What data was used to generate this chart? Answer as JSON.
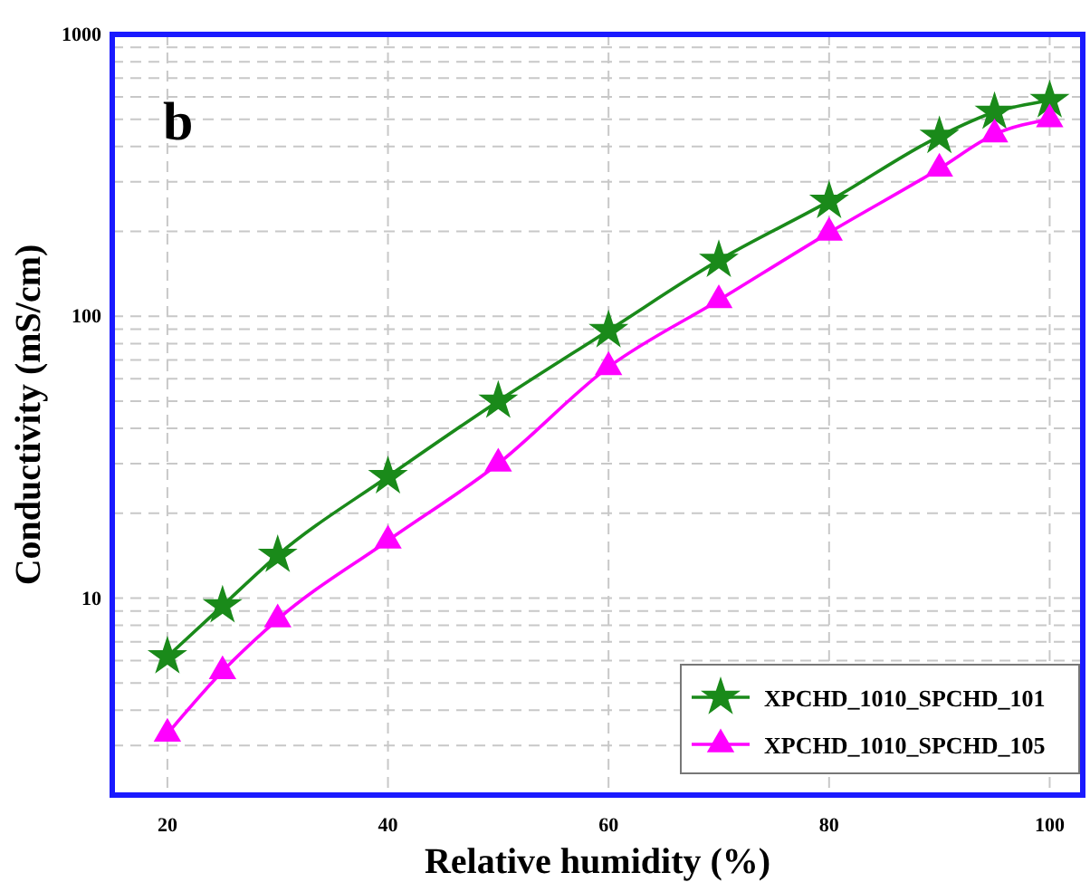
{
  "chart_data": {
    "type": "line",
    "xlabel": "Relative humidity (%)",
    "ylabel": "Conductivity (mS/cm)",
    "annotations": [
      "b"
    ],
    "x": [
      20,
      25,
      30,
      40,
      50,
      60,
      70,
      80,
      90,
      95,
      100
    ],
    "series": [
      {
        "name": "XPCHD_1010_SPCHD_101",
        "color": "#1a8a1a",
        "marker": "star",
        "values": [
          6.2,
          9.4,
          14.2,
          27,
          50,
          89,
          158,
          256,
          435,
          530,
          583
        ]
      },
      {
        "name": "XPCHD_1010_SPCHD_105",
        "color": "#ff00ff",
        "marker": "triangle",
        "values": [
          3.3,
          5.5,
          8.4,
          16,
          30,
          66,
          114,
          198,
          334,
          442,
          500
        ]
      }
    ],
    "log": true,
    "xlim": [
      15,
      103
    ],
    "xticks": [
      20,
      40,
      60,
      80,
      100
    ],
    "ylim": [
      2,
      1000
    ],
    "yticks": [
      {
        "value": 2,
        "label": null
      },
      {
        "value": 3,
        "label": null
      },
      {
        "value": 4,
        "label": null
      },
      {
        "value": 5,
        "label": null
      },
      {
        "value": 6,
        "label": null
      },
      {
        "value": 7,
        "label": null
      },
      {
        "value": 8,
        "label": null
      },
      {
        "value": 9,
        "label": null
      },
      10,
      {
        "value": 20,
        "label": null
      },
      {
        "value": 30,
        "label": null
      },
      {
        "value": 40,
        "label": null
      },
      {
        "value": 50,
        "label": null
      },
      {
        "value": 60,
        "label": null
      },
      {
        "value": 70,
        "label": null
      },
      {
        "value": 80,
        "label": null
      },
      {
        "value": 90,
        "label": null
      },
      100,
      {
        "value": 200,
        "label": null
      },
      {
        "value": 300,
        "label": null
      },
      {
        "value": 400,
        "label": null
      },
      {
        "value": 500,
        "label": null
      },
      {
        "value": 600,
        "label": null
      },
      {
        "value": 700,
        "label": null
      },
      {
        "value": 800,
        "label": null
      },
      {
        "value": 900,
        "label": null
      },
      1000
    ],
    "grid": true,
    "legend": "bottom right",
    "line_style": "solid"
  }
}
